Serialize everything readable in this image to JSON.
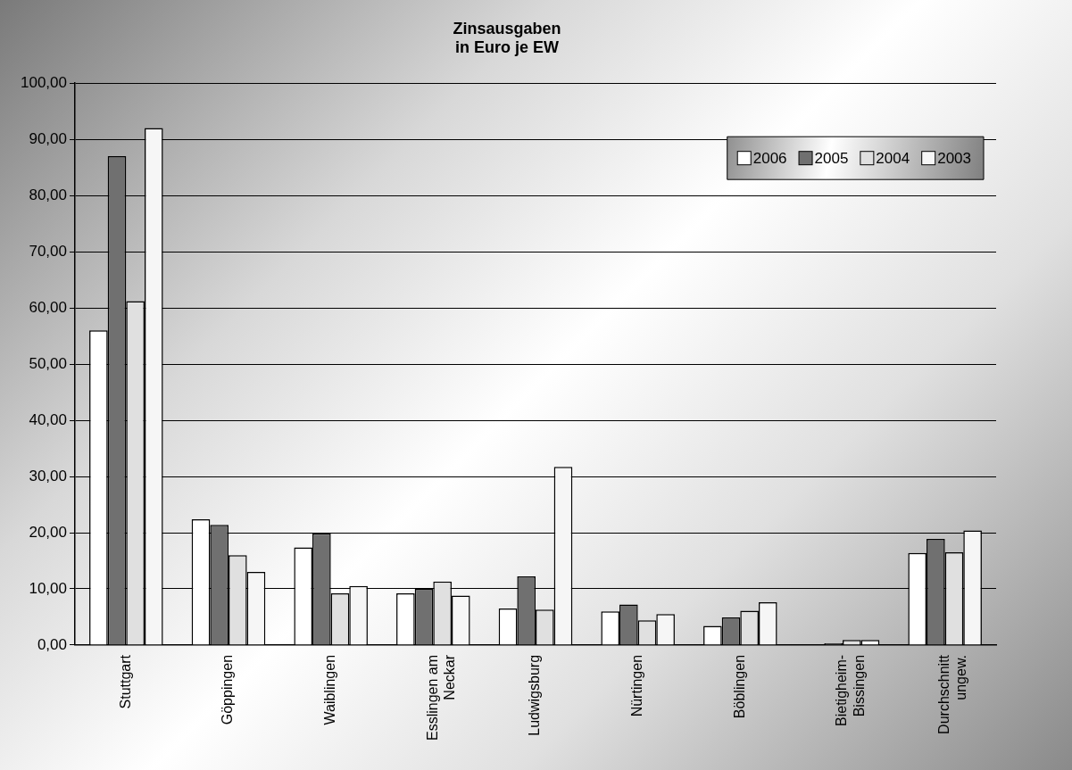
{
  "chart_data": {
    "type": "bar",
    "title": "Zinsausgaben\nin Euro je EW",
    "categories": [
      "Stuttgart",
      "Göppingen",
      "Waiblingen",
      "Esslingen am Neckar",
      "Ludwigsburg",
      "Nürtingen",
      "Böblingen",
      "Bietigheim-Bissingen",
      "Durchschnitt ungew."
    ],
    "series": [
      {
        "name": "2006",
        "color": "#ffffff",
        "values": [
          56,
          22.4,
          17.4,
          9.2,
          6.5,
          6.0,
          3.4,
          null,
          16.4
        ]
      },
      {
        "name": "2005",
        "color": "#707070",
        "values": [
          87,
          21.4,
          19.9,
          10.0,
          12.2,
          7.2,
          4.9,
          0.3,
          18.9
        ]
      },
      {
        "name": "2004",
        "color": "#e0e0e0",
        "values": [
          61.2,
          16.0,
          9.2,
          11.3,
          6.3,
          4.4,
          6.1,
          0.9,
          16.5
        ]
      },
      {
        "name": "2003",
        "color": "#f6f6f6",
        "values": [
          92,
          13.0,
          10.5,
          8.8,
          31.7,
          5.5,
          7.6,
          0.9,
          20.4
        ]
      }
    ],
    "ylim": [
      0,
      100
    ],
    "yticks": [
      {
        "value": 0,
        "label": "0,00"
      },
      {
        "value": 10,
        "label": "10,00"
      },
      {
        "value": 20,
        "label": "20,00"
      },
      {
        "value": 30,
        "label": "30,00"
      },
      {
        "value": 40,
        "label": "40,00"
      },
      {
        "value": 50,
        "label": "50,00"
      },
      {
        "value": 60,
        "label": "60,00"
      },
      {
        "value": 70,
        "label": "70,00"
      },
      {
        "value": 80,
        "label": "80,00"
      },
      {
        "value": 90,
        "label": "90,00"
      },
      {
        "value": 100,
        "label": "100,00"
      }
    ],
    "grid": "y",
    "legend": "top right"
  }
}
